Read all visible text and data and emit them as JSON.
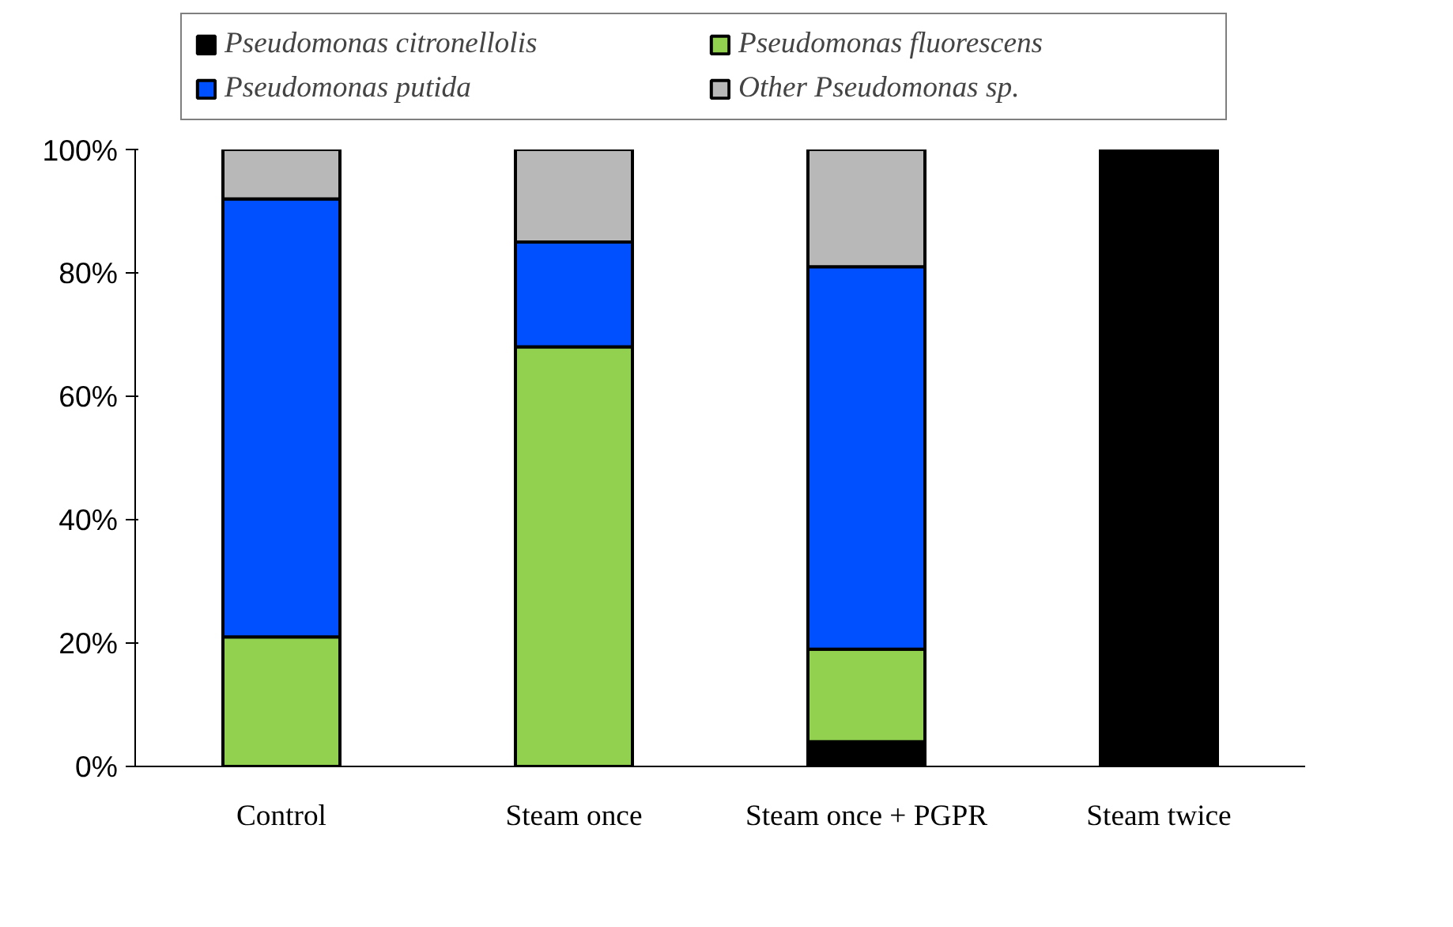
{
  "chart_data": {
    "type": "bar",
    "stacked": true,
    "categories": [
      "Control",
      "Steam once",
      "Steam once + PGPR",
      "Steam twice"
    ],
    "series": [
      {
        "name": "Pseudomonas citronellolis",
        "color": "#000000",
        "values": [
          0,
          0,
          4,
          100
        ]
      },
      {
        "name": "Pseudomonas fluorescens",
        "color": "#92d050",
        "values": [
          21,
          68,
          15,
          0
        ]
      },
      {
        "name": "Pseudomonas putida",
        "color": "#0050ff",
        "values": [
          71,
          17,
          62,
          0
        ]
      },
      {
        "name": "Other Pseudomonas sp.",
        "color": "#b8b8b8",
        "values": [
          8,
          15,
          19,
          0
        ]
      }
    ],
    "ylim": [
      0,
      100
    ],
    "yticks": [
      {
        "value": 0,
        "label": "0%"
      },
      {
        "value": 20,
        "label": "20%"
      },
      {
        "value": 40,
        "label": "40%"
      },
      {
        "value": 60,
        "label": "60%"
      },
      {
        "value": 80,
        "label": "80%"
      },
      {
        "value": 100,
        "label": "100%"
      }
    ],
    "grid": false,
    "legend": "top"
  }
}
